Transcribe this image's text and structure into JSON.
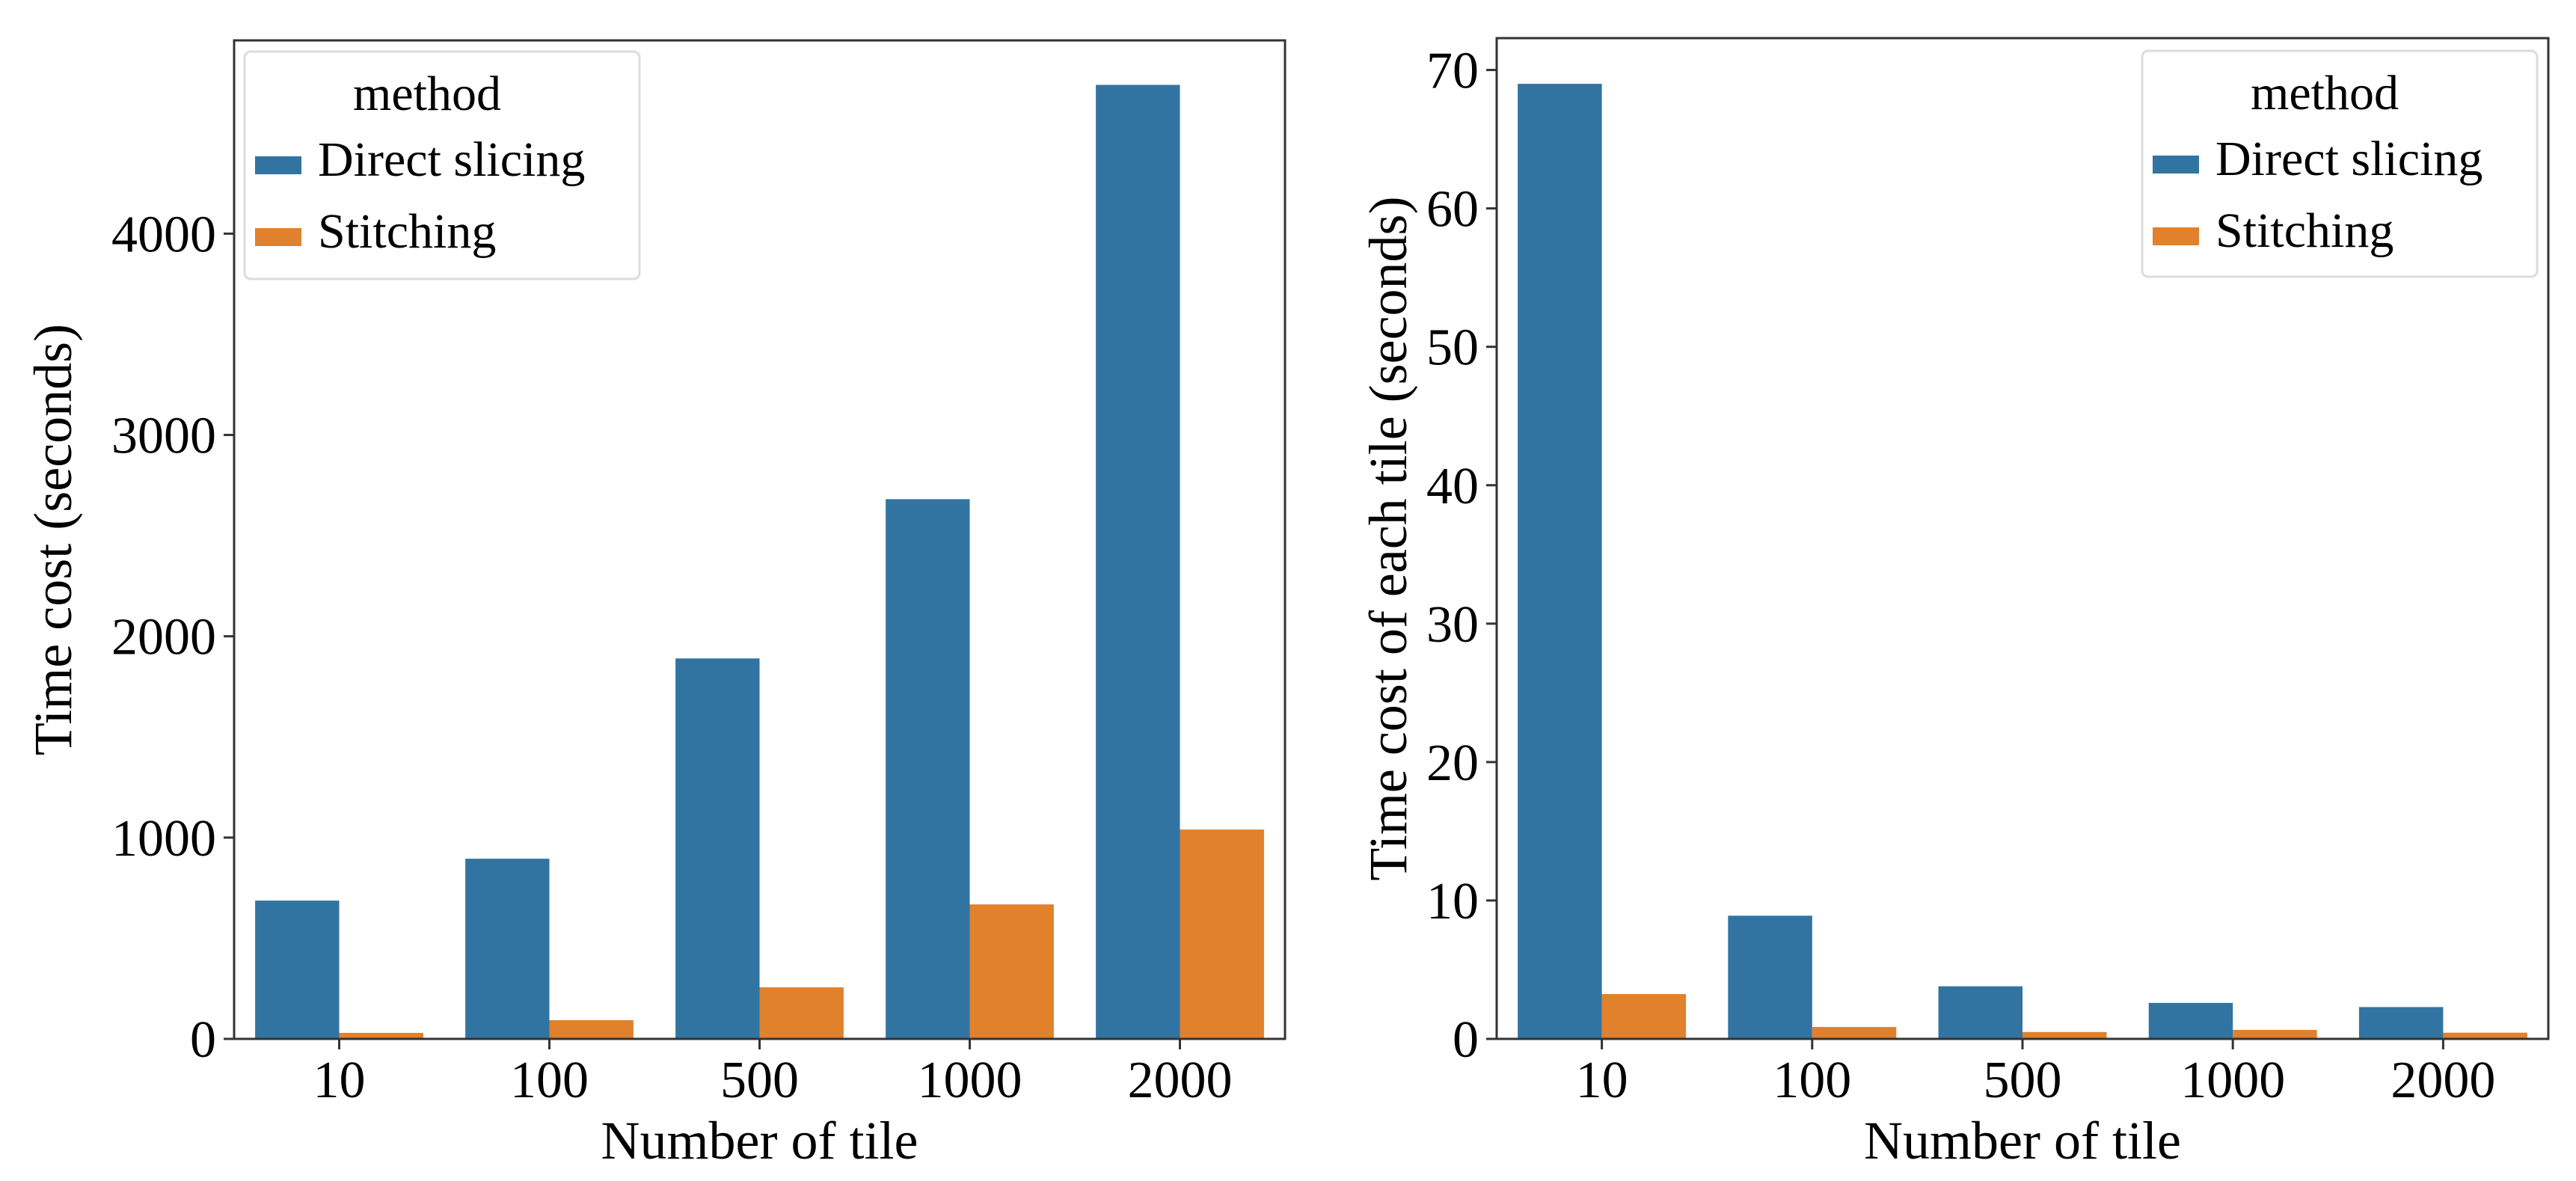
{
  "chart_data": [
    {
      "type": "bar",
      "title": "",
      "xlabel": "Number of tile",
      "ylabel": "Time cost (seconds)",
      "categories": [
        "10",
        "100",
        "500",
        "1000",
        "2000"
      ],
      "series": [
        {
          "name": "Direct slicing",
          "color": "#3274a1",
          "values": [
            687,
            895,
            1890,
            2681,
            4739
          ]
        },
        {
          "name": "Stitching",
          "color": "#e1812c",
          "values": [
            30,
            93,
            256,
            668,
            1040
          ]
        }
      ],
      "ylim": [
        0,
        4960
      ],
      "yticks": [
        0,
        1000,
        2000,
        3000,
        4000
      ],
      "legend": {
        "title": "method",
        "position": "upper left"
      },
      "grid": false
    },
    {
      "type": "bar",
      "title": "",
      "xlabel": "Number of tile",
      "ylabel": "Time cost of each tile (seconds)",
      "categories": [
        "10",
        "100",
        "500",
        "1000",
        "2000"
      ],
      "series": [
        {
          "name": "Direct slicing",
          "color": "#3274a1",
          "values": [
            69.0,
            8.9,
            3.8,
            2.6,
            2.3
          ]
        },
        {
          "name": "Stitching",
          "color": "#e1812c",
          "values": [
            3.24,
            0.86,
            0.5,
            0.65,
            0.45
          ]
        }
      ],
      "ylim": [
        0,
        72.3
      ],
      "yticks": [
        0,
        10,
        20,
        30,
        40,
        50,
        60,
        70
      ],
      "legend": {
        "title": "method",
        "position": "upper right"
      },
      "grid": false
    }
  ]
}
